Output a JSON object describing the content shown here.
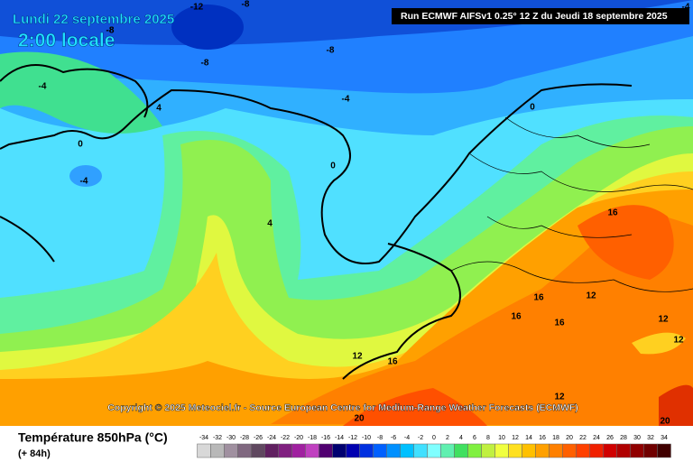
{
  "header": {
    "date": "Lundi 22 septembre 2025",
    "time": "2:00 locale",
    "run": "Run ECMWF AIFSv1 0.25° 12 Z du Jeudi 18 septembre 2025"
  },
  "map": {
    "copyright": "Copyright © 2025 Meteociel.fr - Source European Centre for Medium-Range Weather Forecasts (ECMWF)",
    "contour_labels": [
      -12,
      -8,
      -8,
      -4,
      -8,
      -8,
      -8,
      -4,
      -4,
      4,
      0,
      0,
      -4,
      4,
      0,
      16,
      12,
      16,
      16,
      16,
      12,
      16,
      12,
      12,
      12,
      20,
      20
    ]
  },
  "footer": {
    "title": "Température 850hPa (°C)",
    "lead": "(+ 84h)"
  },
  "colorbar": {
    "labels": [
      -34,
      -32,
      -30,
      -28,
      -26,
      -24,
      -22,
      -20,
      -18,
      -16,
      -14,
      -12,
      -10,
      -8,
      -6,
      -4,
      -2,
      0,
      2,
      4,
      6,
      8,
      10,
      12,
      14,
      16,
      18,
      20,
      22,
      24,
      26,
      28,
      30,
      32,
      34
    ],
    "colors": [
      "#d8d8d8",
      "#b8b8b8",
      "#a090a0",
      "#806880",
      "#604860",
      "#602060",
      "#802080",
      "#a020a0",
      "#c040c0",
      "#500070",
      "#000070",
      "#0000b0",
      "#0030e0",
      "#0060ff",
      "#0090ff",
      "#00c0ff",
      "#40e0ff",
      "#80ffff",
      "#60f0b0",
      "#40e060",
      "#80f040",
      "#c0f040",
      "#f0ff40",
      "#ffe020",
      "#ffc000",
      "#ffa000",
      "#ff8000",
      "#ff6000",
      "#ff4000",
      "#f02000",
      "#d00000",
      "#b00000",
      "#900000",
      "#700000",
      "#400000"
    ]
  }
}
